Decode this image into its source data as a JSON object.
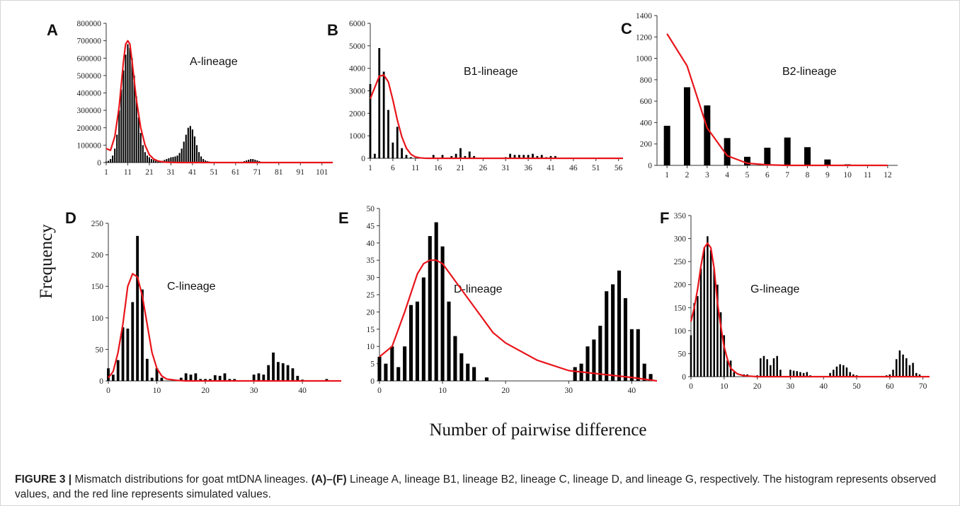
{
  "figure": {
    "ylabel": "Frequency",
    "xlabel": "Number of pairwise difference",
    "caption": {
      "lead": "FIGURE 3 |",
      "text1": " Mismatch distributions for goat mtDNA lineages. ",
      "ref": "(A)–(F)",
      "text2": " Lineage A, lineage B1, lineage B2, lineage C, lineage D, and lineage G, respectively. The histogram represents observed values, and the red line represents simulated values."
    }
  },
  "colors": {
    "observed": "#000000",
    "simulated": "#e8141a"
  },
  "chart_data": [
    {
      "id": "A",
      "type": "bar",
      "letter": "A",
      "title": "A-lineage",
      "xlim": [
        1,
        106
      ],
      "ylim": [
        0,
        800000
      ],
      "xticks": [
        1,
        11,
        21,
        31,
        41,
        51,
        61,
        71,
        81,
        91,
        101
      ],
      "yticks": [
        0,
        100000,
        200000,
        300000,
        400000,
        500000,
        600000,
        700000,
        800000
      ],
      "x": [
        1,
        2,
        3,
        4,
        5,
        6,
        7,
        8,
        9,
        10,
        11,
        12,
        13,
        14,
        15,
        16,
        17,
        18,
        19,
        20,
        21,
        22,
        23,
        24,
        25,
        26,
        27,
        28,
        29,
        30,
        31,
        32,
        33,
        34,
        35,
        36,
        37,
        38,
        39,
        40,
        41,
        42,
        43,
        44,
        45,
        46,
        47,
        48,
        49,
        50,
        51,
        52,
        53,
        54,
        55,
        56,
        57,
        58,
        59,
        60,
        61,
        62,
        63,
        64,
        65,
        66,
        67,
        68,
        69,
        70,
        71,
        72,
        73,
        74,
        75
      ],
      "values": [
        5000,
        10000,
        20000,
        40000,
        80000,
        160000,
        300000,
        420000,
        530000,
        620000,
        680000,
        660000,
        600000,
        500000,
        380000,
        260000,
        170000,
        100000,
        60000,
        40000,
        30000,
        20000,
        15000,
        10000,
        8000,
        8000,
        10000,
        15000,
        20000,
        25000,
        30000,
        32000,
        35000,
        40000,
        55000,
        80000,
        120000,
        160000,
        200000,
        210000,
        190000,
        150000,
        100000,
        60000,
        35000,
        20000,
        12000,
        8000,
        5000,
        3000,
        2000,
        1000,
        1000,
        1000,
        0,
        0,
        0,
        0,
        0,
        0,
        0,
        1000,
        2000,
        4000,
        8000,
        12000,
        16000,
        20000,
        20000,
        16000,
        12000,
        8000,
        4000,
        2000,
        1000
      ],
      "sim_x": [
        1,
        3,
        5,
        7,
        9,
        10,
        11,
        12,
        13,
        15,
        17,
        19,
        21,
        23,
        25,
        27,
        29,
        31,
        36,
        41,
        51,
        61,
        71,
        81,
        91,
        106
      ],
      "sim_y": [
        80000,
        70000,
        150000,
        320000,
        580000,
        680000,
        700000,
        680000,
        580000,
        360000,
        200000,
        100000,
        45000,
        20000,
        9000,
        4000,
        2000,
        1000,
        0,
        0,
        0,
        0,
        0,
        0,
        0,
        0
      ]
    },
    {
      "id": "B1",
      "type": "bar",
      "letter": "B",
      "title": "B1-lineage",
      "xlim": [
        1,
        57
      ],
      "ylim": [
        0,
        6000
      ],
      "xticks": [
        1,
        6,
        11,
        16,
        21,
        26,
        31,
        36,
        41,
        46,
        51,
        56
      ],
      "yticks": [
        0,
        1000,
        2000,
        3000,
        4000,
        5000,
        6000
      ],
      "x": [
        1,
        2,
        3,
        4,
        5,
        6,
        7,
        8,
        9,
        10,
        15,
        17,
        19,
        20,
        21,
        22,
        23,
        24,
        31,
        32,
        33,
        34,
        35,
        36,
        37,
        38,
        39,
        40,
        41,
        42
      ],
      "values": [
        3300,
        200,
        4900,
        3850,
        2150,
        700,
        1400,
        450,
        150,
        50,
        150,
        150,
        100,
        200,
        450,
        100,
        300,
        100,
        50,
        200,
        150,
        150,
        150,
        150,
        200,
        100,
        150,
        50,
        100,
        100
      ],
      "sim_x": [
        1,
        2,
        3,
        4,
        5,
        6,
        7,
        8,
        9,
        10,
        11,
        12,
        13,
        14,
        16,
        21,
        31,
        41,
        51,
        57
      ],
      "sim_y": [
        2650,
        3150,
        3650,
        3700,
        3400,
        2600,
        1700,
        950,
        450,
        180,
        60,
        20,
        5,
        0,
        0,
        0,
        0,
        0,
        0,
        0
      ]
    },
    {
      "id": "B2",
      "type": "bar",
      "letter": "C",
      "title": "B2-lineage",
      "xlim": [
        0.5,
        12.5
      ],
      "ylim": [
        0,
        1400
      ],
      "xticks": [
        1,
        2,
        3,
        4,
        5,
        6,
        7,
        8,
        9,
        10,
        11,
        12
      ],
      "yticks": [
        0,
        200,
        400,
        600,
        800,
        1000,
        1200,
        1400
      ],
      "x": [
        1,
        2,
        3,
        4,
        5,
        6,
        7,
        8,
        9,
        10,
        11,
        12
      ],
      "values": [
        370,
        730,
        560,
        255,
        80,
        165,
        260,
        170,
        55,
        10,
        0,
        0
      ],
      "sim_x": [
        1,
        2,
        3,
        4,
        5,
        6,
        7,
        8,
        9,
        10,
        11,
        12
      ],
      "sim_y": [
        1230,
        930,
        350,
        90,
        20,
        5,
        0,
        0,
        0,
        0,
        0,
        0
      ]
    },
    {
      "id": "C",
      "type": "bar",
      "letter": "D",
      "title": "C-lineage",
      "xlim": [
        0,
        48
      ],
      "ylim": [
        0,
        250
      ],
      "xticks": [
        0,
        10,
        20,
        30,
        40
      ],
      "yticks": [
        0,
        50,
        100,
        150,
        200,
        250
      ],
      "x": [
        0,
        1,
        2,
        3,
        4,
        5,
        6,
        7,
        8,
        9,
        10,
        11,
        15,
        16,
        17,
        18,
        19,
        20,
        21,
        22,
        23,
        24,
        25,
        26,
        30,
        31,
        32,
        33,
        34,
        35,
        36,
        37,
        38,
        39,
        40,
        41,
        42,
        43,
        44,
        45,
        46,
        47
      ],
      "values": [
        20,
        10,
        33,
        85,
        83,
        125,
        230,
        145,
        35,
        5,
        20,
        5,
        5,
        12,
        10,
        12,
        3,
        3,
        3,
        9,
        8,
        12,
        3,
        3,
        10,
        12,
        10,
        25,
        45,
        30,
        28,
        25,
        20,
        8,
        2,
        1,
        1,
        1,
        1,
        3,
        1,
        1
      ],
      "sim_x": [
        0,
        1,
        2,
        3,
        4,
        5,
        6,
        7,
        8,
        9,
        10,
        11,
        12,
        14,
        16,
        20,
        30,
        40,
        48
      ],
      "sim_y": [
        5,
        15,
        45,
        90,
        150,
        170,
        165,
        135,
        90,
        45,
        20,
        8,
        3,
        1,
        0,
        0,
        0,
        0,
        0
      ]
    },
    {
      "id": "D",
      "type": "bar",
      "letter": "E",
      "title": "D-lineage",
      "xlim": [
        0,
        44
      ],
      "ylim": [
        0,
        50
      ],
      "xticks": [
        0,
        10,
        20,
        30,
        40
      ],
      "yticks": [
        0,
        5,
        10,
        15,
        20,
        25,
        30,
        35,
        40,
        45,
        50
      ],
      "x": [
        0,
        1,
        2,
        3,
        4,
        5,
        6,
        7,
        8,
        9,
        10,
        11,
        12,
        13,
        14,
        15,
        17,
        31,
        32,
        33,
        34,
        35,
        36,
        37,
        38,
        39,
        40,
        41,
        42,
        43
      ],
      "values": [
        7,
        5,
        10,
        4,
        10,
        22,
        23,
        30,
        42,
        46,
        39,
        23,
        13,
        8,
        5,
        4,
        1,
        4,
        5,
        10,
        12,
        16,
        26,
        28,
        32,
        24,
        15,
        15,
        5,
        2
      ],
      "sim_x": [
        0,
        2,
        4,
        6,
        7,
        8,
        9,
        10,
        12,
        14,
        16,
        18,
        20,
        25,
        30,
        35,
        40,
        44
      ],
      "sim_y": [
        7,
        10,
        20,
        31,
        34,
        35,
        35,
        34,
        29,
        24,
        19,
        14,
        11,
        6,
        3,
        2,
        1,
        0
      ]
    },
    {
      "id": "G",
      "type": "bar",
      "letter": "F",
      "title": "G-lineage",
      "xlim": [
        0,
        72
      ],
      "ylim": [
        0,
        350
      ],
      "xticks": [
        0,
        10,
        20,
        30,
        40,
        50,
        60,
        70
      ],
      "yticks": [
        0,
        50,
        100,
        150,
        200,
        250,
        300,
        350
      ],
      "x": [
        0,
        1,
        2,
        3,
        4,
        5,
        6,
        7,
        8,
        9,
        10,
        11,
        12,
        13,
        16,
        17,
        20,
        21,
        22,
        23,
        24,
        25,
        26,
        27,
        30,
        31,
        32,
        33,
        34,
        35,
        36,
        42,
        43,
        44,
        45,
        46,
        47,
        48,
        49,
        50,
        51,
        59,
        60,
        61,
        62,
        63,
        64,
        65,
        66,
        67,
        68,
        69
      ],
      "values": [
        90,
        160,
        175,
        235,
        280,
        305,
        275,
        235,
        200,
        140,
        90,
        35,
        35,
        10,
        5,
        5,
        3,
        40,
        45,
        38,
        25,
        40,
        45,
        15,
        15,
        13,
        12,
        10,
        8,
        10,
        3,
        8,
        15,
        22,
        27,
        25,
        20,
        10,
        5,
        3,
        1,
        3,
        5,
        15,
        38,
        57,
        48,
        40,
        25,
        30,
        8,
        5
      ],
      "sim_x": [
        0,
        1,
        2,
        3,
        4,
        5,
        6,
        7,
        8,
        9,
        10,
        11,
        12,
        14,
        16,
        20,
        30,
        40,
        50,
        60,
        70,
        72
      ],
      "sim_y": [
        120,
        150,
        190,
        240,
        280,
        290,
        280,
        235,
        160,
        110,
        65,
        38,
        18,
        6,
        2,
        0,
        0,
        0,
        0,
        0,
        0,
        0
      ]
    }
  ]
}
